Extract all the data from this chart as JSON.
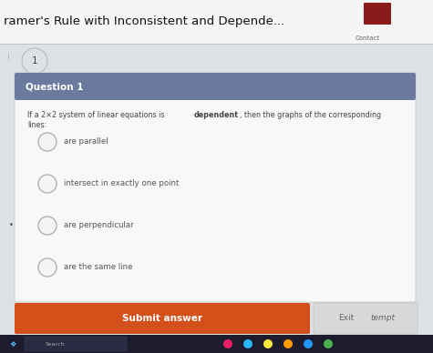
{
  "title": "ramer's Rule with Inconsistent and Depende...",
  "contact_text": "Contact",
  "question_number": "1",
  "question_header": "Question 1",
  "options": [
    "are parallel",
    "intersect in exactly one point",
    "are perpendicular",
    "are the same line"
  ],
  "submit_text": "Submit answer",
  "exit_text": "Exit",
  "tempt_text": "tempt",
  "bg_color": "#dde0e5",
  "title_bar_bg": "#f5f5f5",
  "card_bg": "#f8f8f8",
  "card_header_bg": "#6b7b9e",
  "card_header_text": "#ffffff",
  "submit_btn_color": "#d4501a",
  "submit_text_color": "#ffffff",
  "exit_btn_color": "#e0e0e0",
  "option_circle_color": "#f5f5f5",
  "option_circle_edge": "#b0b0b0",
  "title_color": "#111111",
  "taskbar_color": "#1c1c2e",
  "number_circle_color": "#dde0e5",
  "number_text_color": "#444444",
  "chat_icon_color": "#8b1a1a",
  "separator_color": "#c0c0c0",
  "question_text_color": "#444444",
  "option_text_color": "#555555"
}
